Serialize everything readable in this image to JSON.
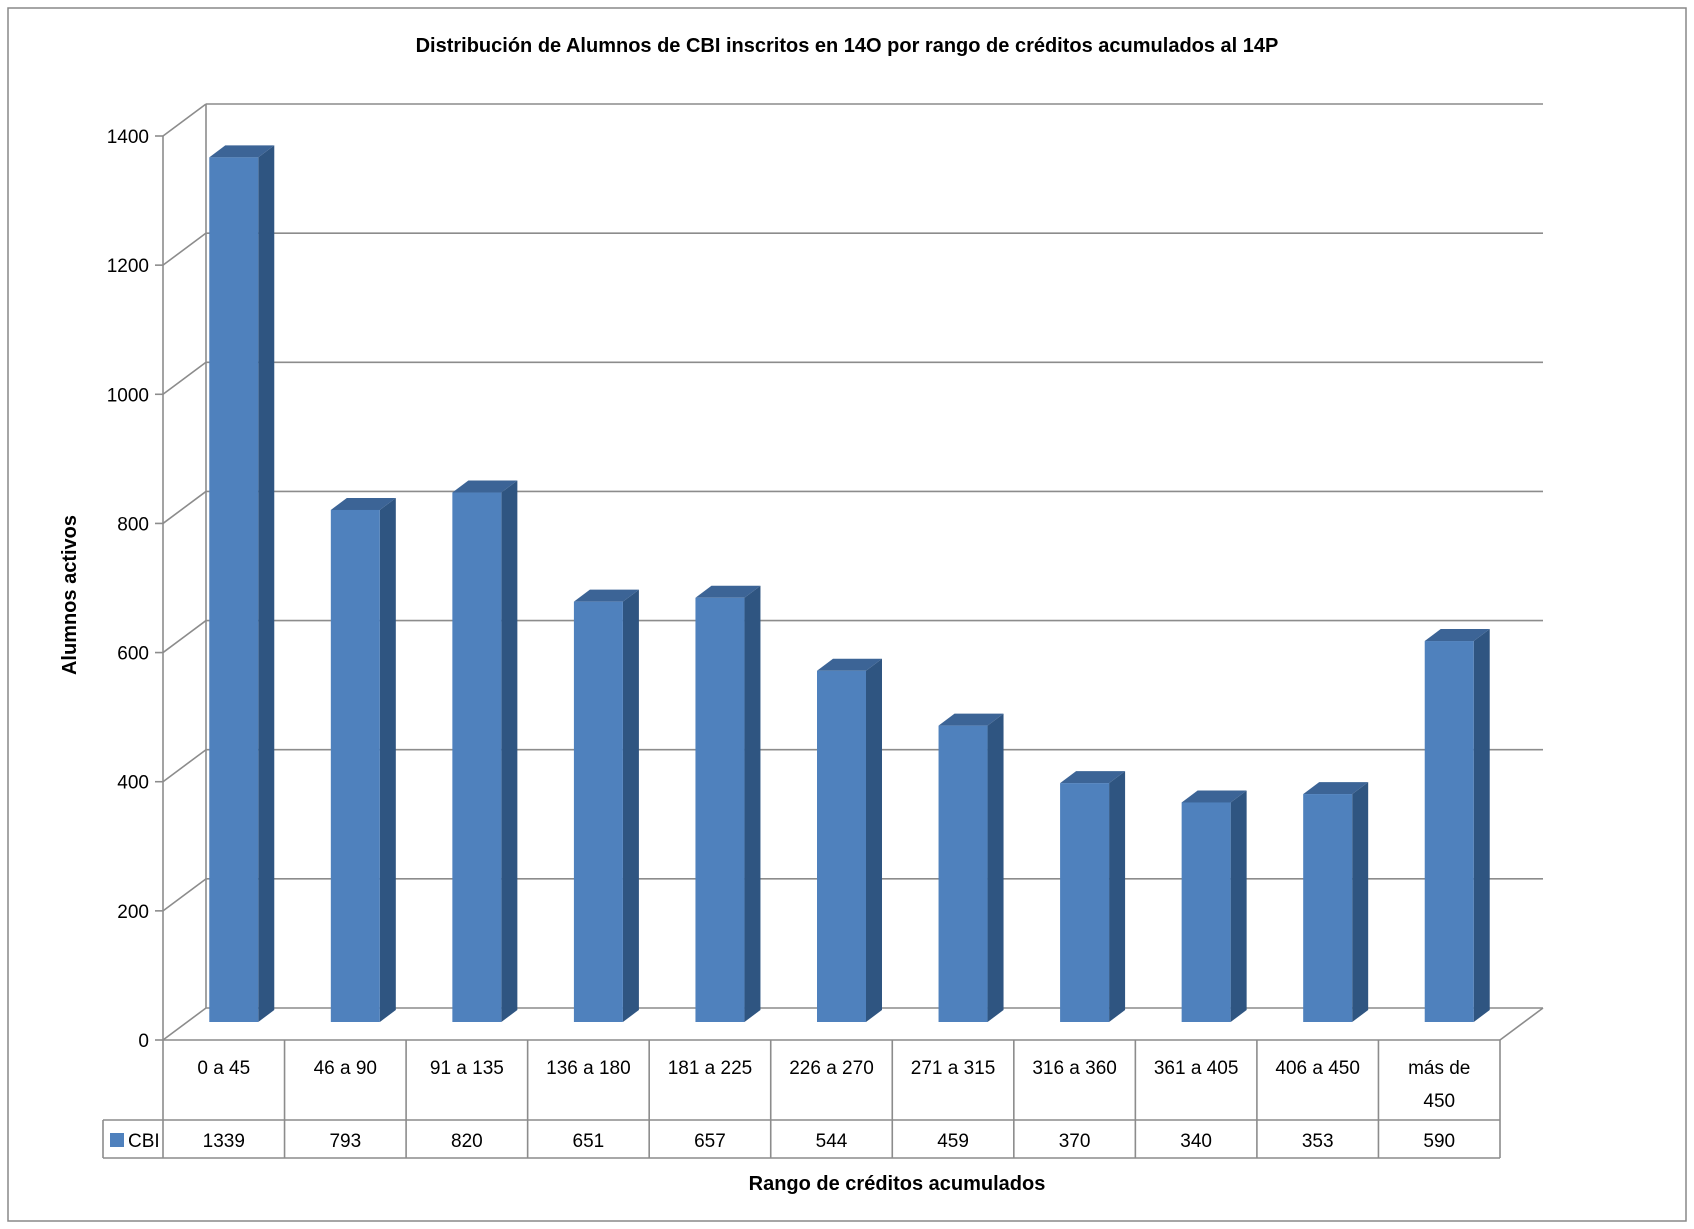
{
  "chart_data": {
    "type": "bar",
    "title": "Distribución de Alumnos de CBI inscritos en 14O por rango de créditos acumulados al 14P",
    "xlabel": "Rango de créditos acumulados",
    "ylabel": "Alumnos activos",
    "ylim": [
      0,
      1400
    ],
    "yticks": [
      0,
      200,
      400,
      600,
      800,
      1000,
      1200,
      1400
    ],
    "grid": true,
    "legend": "data table",
    "categories": [
      [
        "0 a 45"
      ],
      [
        "46 a 90"
      ],
      [
        "91 a 135"
      ],
      [
        "136 a 180"
      ],
      [
        "181 a 225"
      ],
      [
        "226 a 270"
      ],
      [
        "271 a 315"
      ],
      [
        "316 a 360"
      ],
      [
        "361 a 405"
      ],
      [
        "406 a 450"
      ],
      [
        "más de",
        "450"
      ]
    ],
    "series": [
      {
        "name": "CBI",
        "values": [
          1339,
          793,
          820,
          651,
          657,
          544,
          459,
          370,
          340,
          353,
          590
        ],
        "color_front": "#4F81BD",
        "color_side": "#2F5581",
        "color_top": "#3C6496"
      }
    ]
  }
}
